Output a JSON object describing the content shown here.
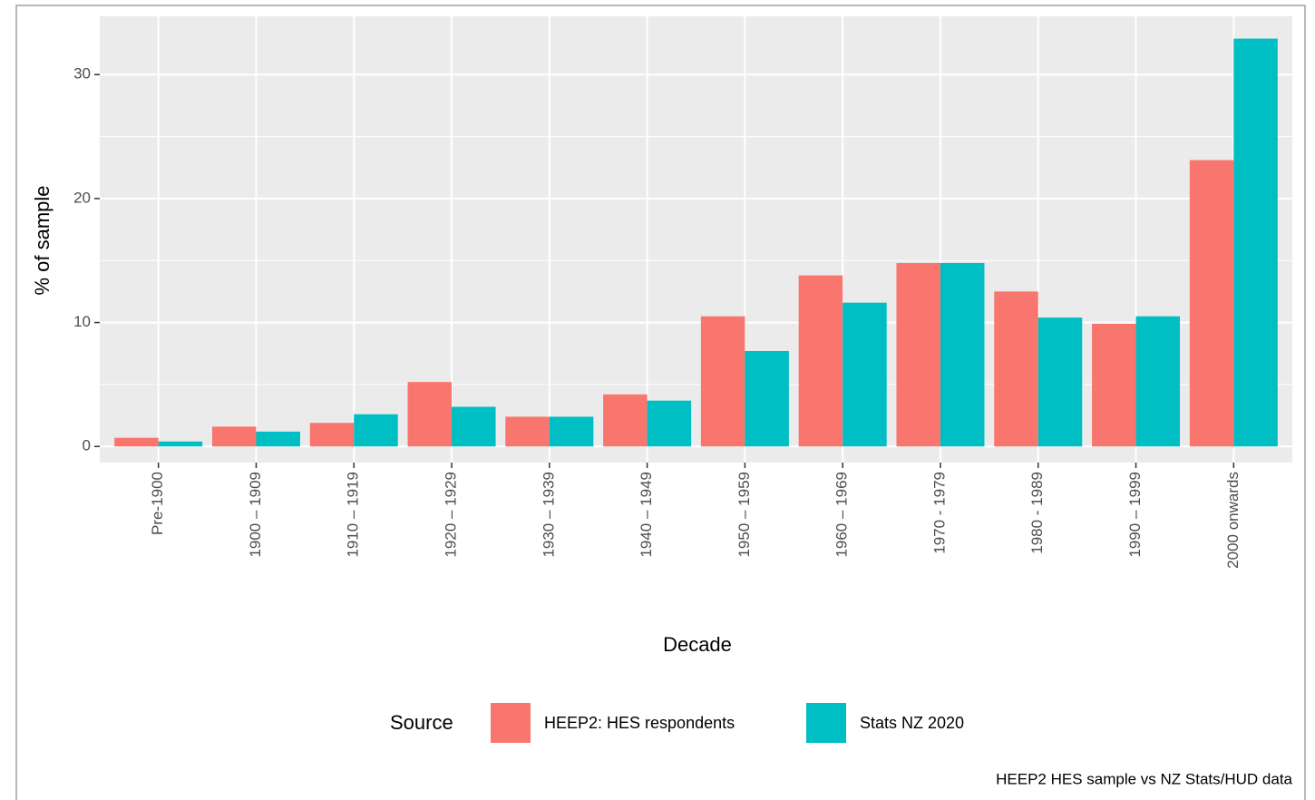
{
  "chart_data": {
    "type": "bar",
    "x_label": "Decade",
    "y_label": "% of sample",
    "caption": "HEEP2 HES sample vs NZ Stats/HUD data",
    "legend_title": "Source",
    "legend": "bottom",
    "grid": true,
    "categories": [
      "Pre-1900",
      "1900 – 1909",
      "1910 – 1919",
      "1920 – 1929",
      "1930 – 1939",
      "1940 – 1949",
      "1950 – 1959",
      "1960 – 1969",
      "1970 - 1979",
      "1980 - 1989",
      "1990 – 1999",
      "2000 onwards"
    ],
    "series": [
      {
        "name": "HEEP2: HES respondents",
        "color": "#f8766d",
        "values": [
          0.7,
          1.6,
          1.9,
          5.2,
          2.4,
          4.2,
          10.5,
          13.8,
          14.8,
          12.5,
          9.9,
          23.1
        ]
      },
      {
        "name": "Stats NZ 2020",
        "color": "#00bfc4",
        "values": [
          0.4,
          1.2,
          2.6,
          3.2,
          2.4,
          3.7,
          7.7,
          11.6,
          14.8,
          10.4,
          10.5,
          32.9
        ]
      }
    ],
    "ylim": [
      -1.3,
      34.7
    ],
    "yticks": [
      0,
      10,
      20,
      30
    ],
    "y_minor_ticks": [
      5,
      15,
      25
    ]
  }
}
